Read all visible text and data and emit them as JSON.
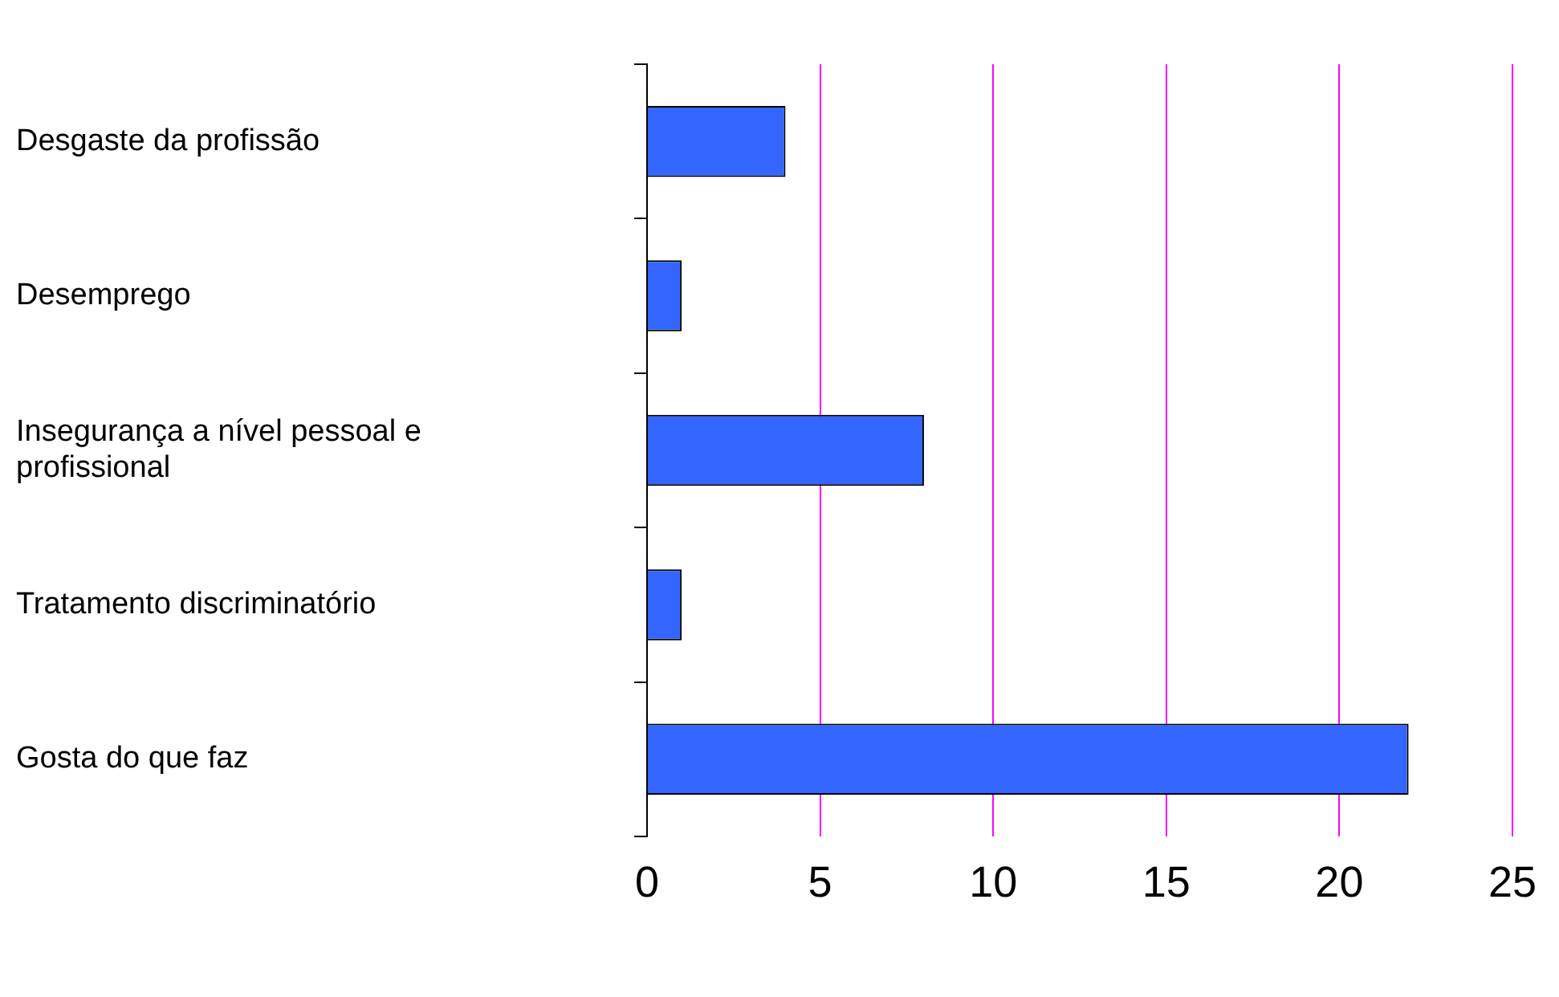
{
  "chart_data": {
    "type": "bar",
    "orientation": "horizontal",
    "categories": [
      "Desgaste da profissão",
      "Desemprego",
      "Insegurança a nível pessoal e profissional",
      "Tratamento discriminatório",
      "Gosta do que faz"
    ],
    "values": [
      4,
      1,
      8,
      1,
      22
    ],
    "color": "#3366ff",
    "xlim": [
      0,
      25
    ],
    "xticks": [
      0,
      5,
      10,
      15,
      20,
      25
    ],
    "grid": "x",
    "legend": false
  }
}
